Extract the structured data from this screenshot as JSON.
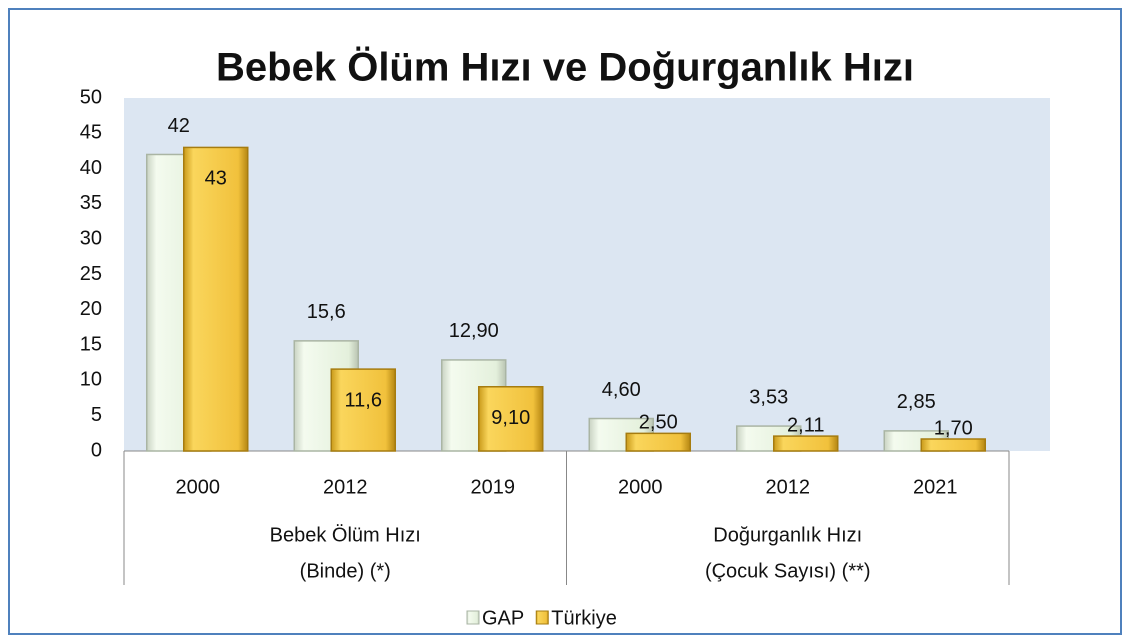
{
  "chart_data": {
    "type": "bar",
    "title": "Bebek Ölüm Hızı ve Doğurganlık Hızı",
    "categories": [
      "2000",
      "2012",
      "2019",
      "2000",
      "2012",
      "2021"
    ],
    "groups": [
      {
        "label": [
          "Bebek Ölüm Hızı",
          "(Binde) (*)"
        ],
        "size": 3
      },
      {
        "label": [
          "Doğurganlık Hızı",
          "(Çocuk Sayısı) (**)"
        ],
        "size": 3
      }
    ],
    "series": [
      {
        "name": "GAP",
        "color": "#e8f3e0",
        "values": [
          42,
          15.6,
          12.9,
          4.6,
          3.53,
          2.85
        ],
        "value_labels": [
          "42",
          "15,6",
          "12,90",
          "4,60",
          "3,53",
          "2,85"
        ]
      },
      {
        "name": "Türkiye",
        "color": "#f4c542",
        "values": [
          43,
          11.6,
          9.1,
          2.5,
          2.11,
          1.7
        ],
        "value_labels": [
          "43",
          "11,6",
          "9,10",
          "2,50",
          "2,11",
          "1,70"
        ]
      }
    ],
    "ylim": [
      0,
      50
    ],
    "yticks": [
      0,
      5,
      10,
      15,
      20,
      25,
      30,
      35,
      40,
      45,
      50
    ],
    "legend": "bottom"
  }
}
